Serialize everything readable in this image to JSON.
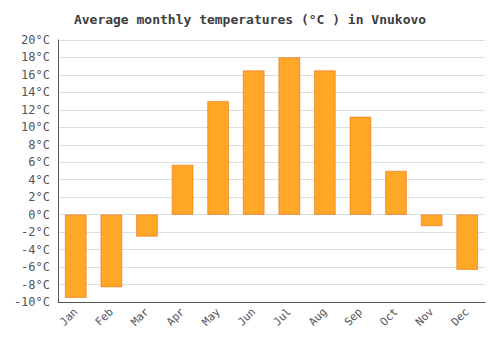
{
  "chart_data": {
    "type": "bar",
    "title": "Average monthly temperatures (°C ) in Vnukovo",
    "categories": [
      "Jan",
      "Feb",
      "Mar",
      "Apr",
      "May",
      "Jun",
      "Jul",
      "Aug",
      "Sep",
      "Oct",
      "Nov",
      "Dec"
    ],
    "values": [
      -9.5,
      -8.3,
      -2.5,
      5.7,
      13.0,
      16.5,
      18.0,
      16.5,
      11.2,
      5.0,
      -1.3,
      -6.3
    ],
    "color": "#FFA726",
    "ylim": [
      -10,
      20
    ],
    "yticks": [
      {
        "value": -10,
        "label": "-10°C"
      },
      {
        "value": -8,
        "label": "-8°C"
      },
      {
        "value": -6,
        "label": "-6°C"
      },
      {
        "value": -4,
        "label": "-4°C"
      },
      {
        "value": -2,
        "label": "-2°C"
      },
      {
        "value": 0,
        "label": "0°C"
      },
      {
        "value": 2,
        "label": "2°C"
      },
      {
        "value": 4,
        "label": "4°C"
      },
      {
        "value": 6,
        "label": "6°C"
      },
      {
        "value": 8,
        "label": "8°C"
      },
      {
        "value": 10,
        "label": "10°C"
      },
      {
        "value": 12,
        "label": "12°C"
      },
      {
        "value": 14,
        "label": "14°C"
      },
      {
        "value": 16,
        "label": "16°C"
      },
      {
        "value": 18,
        "label": "18°C"
      },
      {
        "value": 20,
        "label": "20°C"
      }
    ],
    "grid": true
  }
}
